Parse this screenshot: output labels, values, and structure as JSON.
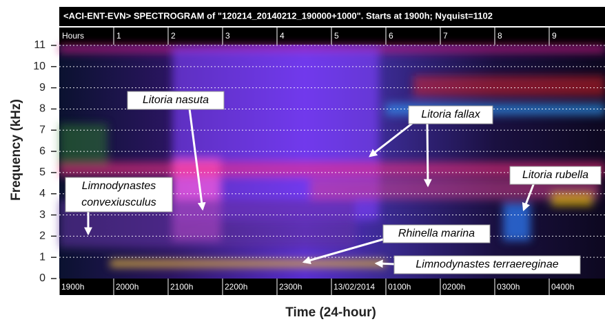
{
  "chart_data": {
    "type": "spectrogram",
    "title": "<ACI-ENT-EVN> SPECTROGRAM  of \"120214_20140212_190000+1000\".   Starts at 1900h; Nyquist=1102",
    "y_label": "Frequency (kHz)",
    "x_label": "Time (24-hour)",
    "ylim": [
      0,
      11
    ],
    "yticks": [
      0,
      1,
      2,
      3,
      4,
      5,
      6,
      7,
      8,
      9,
      10,
      11
    ],
    "grid": true,
    "hour_labels": [
      "Hours",
      "1",
      "2",
      "3",
      "4",
      "5",
      "6",
      "7",
      "8",
      "9"
    ],
    "time_labels": [
      "1900h",
      "2000h",
      "2100h",
      "2200h",
      "2300h",
      "13/02/2014",
      "0100h",
      "0200h",
      "0300h",
      "0400h"
    ],
    "annotations": [
      {
        "lines": [
          "Litoria nasuta"
        ]
      },
      {
        "lines": [
          "Litoria fallax"
        ]
      },
      {
        "lines": [
          "Litoria rubella"
        ]
      },
      {
        "lines": [
          "Limnodynastes",
          "convexiusculus"
        ]
      },
      {
        "lines": [
          "Rhinella marina"
        ]
      },
      {
        "lines": [
          "Limnodynastes terraereginae"
        ]
      }
    ]
  }
}
